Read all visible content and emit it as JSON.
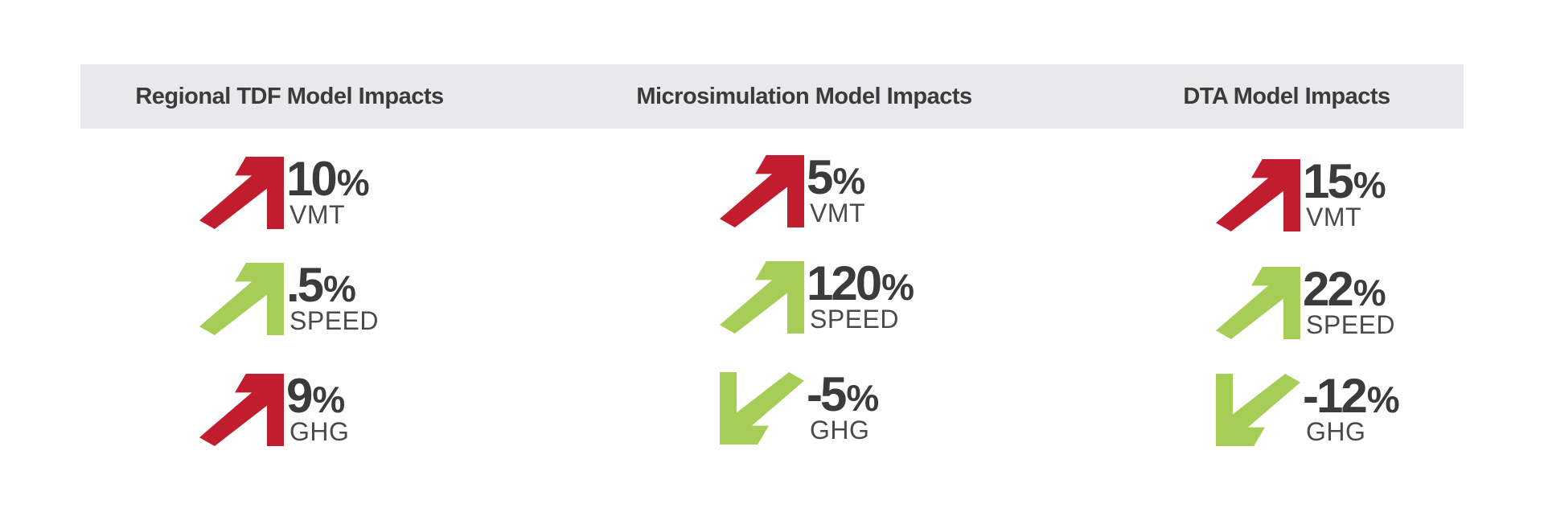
{
  "colors": {
    "increase_red": "#c21d2f",
    "increase_green": "#a6ce57",
    "decrease_green": "#a6ce57",
    "header_band": "#e8e9eb",
    "text": "#3b3b3b"
  },
  "columns": [
    {
      "title": "Regional TDF Model Impacts",
      "metrics": [
        {
          "value": "10",
          "unit": "%",
          "label": "VMT",
          "direction": "up",
          "icon": "arrow-up-right-icon",
          "color": "#c21d2f"
        },
        {
          "value": ".5",
          "unit": "%",
          "label": "SPEED",
          "direction": "up",
          "icon": "arrow-up-right-icon",
          "color": "#a6ce57"
        },
        {
          "value": "9",
          "unit": "%",
          "label": "GHG",
          "direction": "up",
          "icon": "arrow-up-right-icon",
          "color": "#c21d2f"
        }
      ]
    },
    {
      "title": "Microsimulation Model Impacts",
      "metrics": [
        {
          "value": "5",
          "unit": "%",
          "label": "VMT",
          "direction": "up",
          "icon": "arrow-up-right-icon",
          "color": "#c21d2f"
        },
        {
          "value": "120",
          "unit": "%",
          "label": "SPEED",
          "direction": "up",
          "icon": "arrow-up-right-icon",
          "color": "#a6ce57"
        },
        {
          "value": "-5",
          "unit": "%",
          "label": "GHG",
          "direction": "down",
          "icon": "arrow-down-left-icon",
          "color": "#a6ce57"
        }
      ]
    },
    {
      "title": "DTA Model Impacts",
      "metrics": [
        {
          "value": "15",
          "unit": "%",
          "label": "VMT",
          "direction": "up",
          "icon": "arrow-up-right-icon",
          "color": "#c21d2f"
        },
        {
          "value": "22",
          "unit": "%",
          "label": "SPEED",
          "direction": "up",
          "icon": "arrow-up-right-icon",
          "color": "#a6ce57"
        },
        {
          "value": "-12",
          "unit": "%",
          "label": "GHG",
          "direction": "down",
          "icon": "arrow-down-left-icon",
          "color": "#a6ce57"
        }
      ]
    }
  ]
}
